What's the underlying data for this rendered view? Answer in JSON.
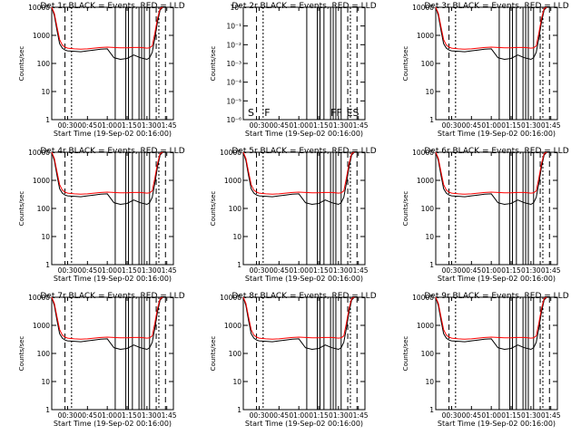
{
  "figure": {
    "background": "#ffffff",
    "events_color": "#000000",
    "lld_color": "#ff0000"
  },
  "chart_data": [
    {
      "type": "line",
      "title": "Det 1r BLACK = Events, RED = LLD",
      "xlabel": "Start Time (19-Sep-02 00:16:00)",
      "ylabel": "Counts/sec",
      "yscale": "log",
      "ylim": [
        1,
        10000
      ],
      "xticks": [
        "00:30",
        "00:45",
        "01:00",
        "01:15",
        "01:30",
        "01:45"
      ],
      "yticks": [
        "1",
        "10",
        "100",
        "1000",
        "10000"
      ],
      "x": [
        "00:18",
        "00:20",
        "00:22",
        "00:24",
        "00:26",
        "00:28",
        "00:30",
        "00:35",
        "00:40",
        "00:45",
        "00:50",
        "00:55",
        "01:00",
        "01:05",
        "01:10",
        "01:15",
        "01:20",
        "01:25",
        "01:30",
        "01:32",
        "01:34",
        "01:36",
        "01:38",
        "01:40",
        "01:42"
      ],
      "series": [
        {
          "name": "Events",
          "values": [
            10000,
            5000,
            1500,
            500,
            350,
            300,
            280,
            270,
            260,
            280,
            300,
            320,
            330,
            160,
            140,
            150,
            200,
            160,
            140,
            160,
            250,
            800,
            3000,
            8000,
            10000
          ]
        },
        {
          "name": "LLD",
          "values": [
            10000,
            6000,
            2000,
            700,
            450,
            380,
            350,
            330,
            320,
            330,
            350,
            370,
            380,
            370,
            360,
            360,
            370,
            370,
            350,
            360,
            420,
            1200,
            4000,
            9000,
            10000
          ]
        }
      ]
    },
    {
      "type": "line",
      "title": "Det 2r BLACK = Events, RED = LLD",
      "xlabel": "Start Time (19-Sep-02 00:16:00)",
      "ylabel": "Counts/sec",
      "yscale": "log",
      "ylim": [
        1e-06,
        1
      ],
      "xticks": [
        "00:30",
        "00:45",
        "01:00",
        "01:15",
        "01:30",
        "01:45"
      ],
      "yticks": [
        "10⁻⁶",
        "10⁻⁵",
        "10⁻⁴",
        "10⁻³",
        "10⁻²",
        "10⁻¹",
        "10⁰"
      ],
      "annotations": [
        "S",
        "F",
        "FF",
        "ES"
      ],
      "x": [],
      "series": []
    },
    {
      "type": "line",
      "title": "Det 3r BLACK = Events, RED = LLD",
      "xlabel": "Start Time (19-Sep-02 00:16:00)",
      "ylabel": "Counts/sec",
      "yscale": "log",
      "ylim": [
        1,
        10000
      ],
      "xticks": [
        "00:30",
        "00:45",
        "01:00",
        "01:15",
        "01:30",
        "01:45"
      ],
      "yticks": [
        "1",
        "10",
        "100",
        "1000",
        "10000"
      ],
      "x": [
        "00:18",
        "00:20",
        "00:22",
        "00:24",
        "00:26",
        "00:28",
        "00:30",
        "00:35",
        "00:40",
        "00:45",
        "00:50",
        "00:55",
        "01:00",
        "01:05",
        "01:10",
        "01:15",
        "01:20",
        "01:25",
        "01:30",
        "01:32",
        "01:34",
        "01:36",
        "01:38",
        "01:40",
        "01:42"
      ],
      "series": [
        {
          "name": "Events",
          "values": [
            10000,
            5000,
            1500,
            500,
            350,
            300,
            280,
            270,
            260,
            280,
            300,
            320,
            330,
            160,
            140,
            150,
            200,
            160,
            140,
            160,
            250,
            800,
            3000,
            8000,
            10000
          ]
        },
        {
          "name": "LLD",
          "values": [
            10000,
            6000,
            2000,
            700,
            450,
            380,
            350,
            330,
            320,
            330,
            350,
            370,
            380,
            370,
            360,
            360,
            370,
            370,
            350,
            360,
            420,
            1200,
            4000,
            9000,
            10000
          ]
        }
      ]
    },
    {
      "type": "line",
      "title": "Det 4r BLACK = Events, RED = LLD",
      "xlabel": "Start Time (19-Sep-02 00:16:00)",
      "ylabel": "Counts/sec",
      "yscale": "log",
      "ylim": [
        1,
        10000
      ],
      "xticks": [
        "00:30",
        "00:45",
        "01:00",
        "01:15",
        "01:30",
        "01:45"
      ],
      "yticks": [
        "1",
        "10",
        "100",
        "1000",
        "10000"
      ],
      "x": [
        "00:18",
        "00:20",
        "00:22",
        "00:24",
        "00:26",
        "00:28",
        "00:30",
        "00:35",
        "00:40",
        "00:45",
        "00:50",
        "00:55",
        "01:00",
        "01:05",
        "01:10",
        "01:15",
        "01:20",
        "01:25",
        "01:30",
        "01:32",
        "01:34",
        "01:36",
        "01:38",
        "01:40",
        "01:42"
      ],
      "series": [
        {
          "name": "Events",
          "values": [
            10000,
            5000,
            1500,
            500,
            350,
            300,
            280,
            270,
            260,
            280,
            300,
            320,
            330,
            160,
            140,
            150,
            200,
            160,
            140,
            160,
            250,
            800,
            3000,
            8000,
            10000
          ]
        },
        {
          "name": "LLD",
          "values": [
            10000,
            6000,
            2000,
            700,
            450,
            380,
            350,
            330,
            320,
            330,
            350,
            370,
            380,
            370,
            360,
            360,
            370,
            370,
            350,
            360,
            420,
            1200,
            4000,
            9000,
            10000
          ]
        }
      ]
    },
    {
      "type": "line",
      "title": "Det 5r BLACK = Events, RED = LLD",
      "xlabel": "Start Time (19-Sep-02 00:16:00)",
      "ylabel": "Counts/sec",
      "yscale": "log",
      "ylim": [
        1,
        10000
      ],
      "xticks": [
        "00:30",
        "00:45",
        "01:00",
        "01:15",
        "01:30",
        "01:45"
      ],
      "yticks": [
        "1",
        "10",
        "100",
        "1000",
        "10000"
      ],
      "x": [
        "00:18",
        "00:20",
        "00:22",
        "00:24",
        "00:26",
        "00:28",
        "00:30",
        "00:35",
        "00:40",
        "00:45",
        "00:50",
        "00:55",
        "01:00",
        "01:05",
        "01:10",
        "01:15",
        "01:20",
        "01:25",
        "01:30",
        "01:32",
        "01:34",
        "01:36",
        "01:38",
        "01:40",
        "01:42"
      ],
      "series": [
        {
          "name": "Events",
          "values": [
            10000,
            5000,
            1500,
            500,
            350,
            300,
            280,
            270,
            260,
            280,
            300,
            320,
            330,
            160,
            140,
            150,
            200,
            160,
            140,
            160,
            250,
            800,
            3000,
            8000,
            10000
          ]
        },
        {
          "name": "LLD",
          "values": [
            10000,
            6000,
            2000,
            700,
            450,
            380,
            350,
            330,
            320,
            330,
            350,
            370,
            380,
            370,
            360,
            360,
            370,
            370,
            350,
            360,
            420,
            1200,
            4000,
            9000,
            10000
          ]
        }
      ]
    },
    {
      "type": "line",
      "title": "Det 6r BLACK = Events, RED = LLD",
      "xlabel": "Start Time (19-Sep-02 00:16:00)",
      "ylabel": "Counts/sec",
      "yscale": "log",
      "ylim": [
        1,
        10000
      ],
      "xticks": [
        "00:30",
        "00:45",
        "01:00",
        "01:15",
        "01:30",
        "01:45"
      ],
      "yticks": [
        "1",
        "10",
        "100",
        "1000",
        "10000"
      ],
      "x": [
        "00:18",
        "00:20",
        "00:22",
        "00:24",
        "00:26",
        "00:28",
        "00:30",
        "00:35",
        "00:40",
        "00:45",
        "00:50",
        "00:55",
        "01:00",
        "01:05",
        "01:10",
        "01:15",
        "01:20",
        "01:25",
        "01:30",
        "01:32",
        "01:34",
        "01:36",
        "01:38",
        "01:40",
        "01:42"
      ],
      "series": [
        {
          "name": "Events",
          "values": [
            10000,
            5000,
            1500,
            500,
            350,
            300,
            280,
            270,
            260,
            280,
            300,
            320,
            330,
            160,
            140,
            150,
            200,
            160,
            140,
            160,
            250,
            800,
            3000,
            8000,
            10000
          ]
        },
        {
          "name": "LLD",
          "values": [
            10000,
            6000,
            2000,
            700,
            450,
            380,
            350,
            330,
            320,
            330,
            350,
            370,
            380,
            370,
            360,
            360,
            370,
            370,
            350,
            360,
            420,
            1200,
            4000,
            9000,
            10000
          ]
        }
      ]
    },
    {
      "type": "line",
      "title": "Det 7r BLACK = Events, RED = LLD",
      "xlabel": "Start Time (19-Sep-02 00:16:00)",
      "ylabel": "Counts/sec",
      "yscale": "log",
      "ylim": [
        1,
        10000
      ],
      "xticks": [
        "00:30",
        "00:45",
        "01:00",
        "01:15",
        "01:30",
        "01:45"
      ],
      "yticks": [
        "1",
        "10",
        "100",
        "1000",
        "10000"
      ],
      "x": [
        "00:18",
        "00:20",
        "00:22",
        "00:24",
        "00:26",
        "00:28",
        "00:30",
        "00:35",
        "00:40",
        "00:45",
        "00:50",
        "00:55",
        "01:00",
        "01:05",
        "01:10",
        "01:15",
        "01:20",
        "01:25",
        "01:30",
        "01:32",
        "01:34",
        "01:36",
        "01:38",
        "01:40",
        "01:42"
      ],
      "series": [
        {
          "name": "Events",
          "values": [
            10000,
            5000,
            1500,
            500,
            350,
            300,
            280,
            270,
            260,
            280,
            300,
            320,
            330,
            160,
            140,
            150,
            200,
            160,
            140,
            160,
            250,
            800,
            3000,
            8000,
            10000
          ]
        },
        {
          "name": "LLD",
          "values": [
            10000,
            6000,
            2000,
            700,
            450,
            380,
            350,
            330,
            320,
            330,
            350,
            370,
            380,
            370,
            360,
            360,
            370,
            370,
            350,
            360,
            420,
            1200,
            4000,
            9000,
            10000
          ]
        }
      ]
    },
    {
      "type": "line",
      "title": "Det 8r BLACK = Events, RED = LLD",
      "xlabel": "Start Time (19-Sep-02 00:16:00)",
      "ylabel": "Counts/sec",
      "yscale": "log",
      "ylim": [
        1,
        10000
      ],
      "xticks": [
        "00:30",
        "00:45",
        "01:00",
        "01:15",
        "01:30",
        "01:45"
      ],
      "yticks": [
        "1",
        "10",
        "100",
        "1000",
        "10000"
      ],
      "x": [
        "00:18",
        "00:20",
        "00:22",
        "00:24",
        "00:26",
        "00:28",
        "00:30",
        "00:35",
        "00:40",
        "00:45",
        "00:50",
        "00:55",
        "01:00",
        "01:05",
        "01:10",
        "01:15",
        "01:20",
        "01:25",
        "01:30",
        "01:32",
        "01:34",
        "01:36",
        "01:38",
        "01:40",
        "01:42"
      ],
      "series": [
        {
          "name": "Events",
          "values": [
            10000,
            5000,
            1500,
            500,
            350,
            300,
            280,
            270,
            260,
            280,
            300,
            320,
            330,
            160,
            140,
            150,
            200,
            160,
            140,
            160,
            250,
            800,
            3000,
            8000,
            10000
          ]
        },
        {
          "name": "LLD",
          "values": [
            10000,
            6000,
            2000,
            700,
            450,
            380,
            350,
            330,
            320,
            330,
            350,
            370,
            380,
            370,
            360,
            360,
            370,
            370,
            350,
            360,
            420,
            1200,
            4000,
            9000,
            10000
          ]
        }
      ]
    },
    {
      "type": "line",
      "title": "Det 9r BLACK = Events, RED = LLD",
      "xlabel": "Start Time (19-Sep-02 00:16:00)",
      "ylabel": "Counts/sec",
      "yscale": "log",
      "ylim": [
        1,
        10000
      ],
      "xticks": [
        "00:30",
        "00:45",
        "01:00",
        "01:15",
        "01:30",
        "01:45"
      ],
      "yticks": [
        "1",
        "10",
        "100",
        "1000",
        "10000"
      ],
      "x": [
        "00:18",
        "00:20",
        "00:22",
        "00:24",
        "00:26",
        "00:28",
        "00:30",
        "00:35",
        "00:40",
        "00:45",
        "00:50",
        "00:55",
        "01:00",
        "01:05",
        "01:10",
        "01:15",
        "01:20",
        "01:25",
        "01:30",
        "01:32",
        "01:34",
        "01:36",
        "01:38",
        "01:40",
        "01:42"
      ],
      "series": [
        {
          "name": "Events",
          "values": [
            10000,
            5000,
            1500,
            500,
            350,
            300,
            280,
            270,
            260,
            280,
            300,
            320,
            330,
            160,
            140,
            150,
            200,
            160,
            140,
            160,
            250,
            800,
            3000,
            8000,
            10000
          ]
        },
        {
          "name": "LLD",
          "values": [
            10000,
            6000,
            2000,
            700,
            450,
            380,
            350,
            330,
            320,
            330,
            350,
            370,
            380,
            370,
            360,
            360,
            370,
            370,
            350,
            360,
            420,
            1200,
            4000,
            9000,
            10000
          ]
        }
      ]
    }
  ]
}
